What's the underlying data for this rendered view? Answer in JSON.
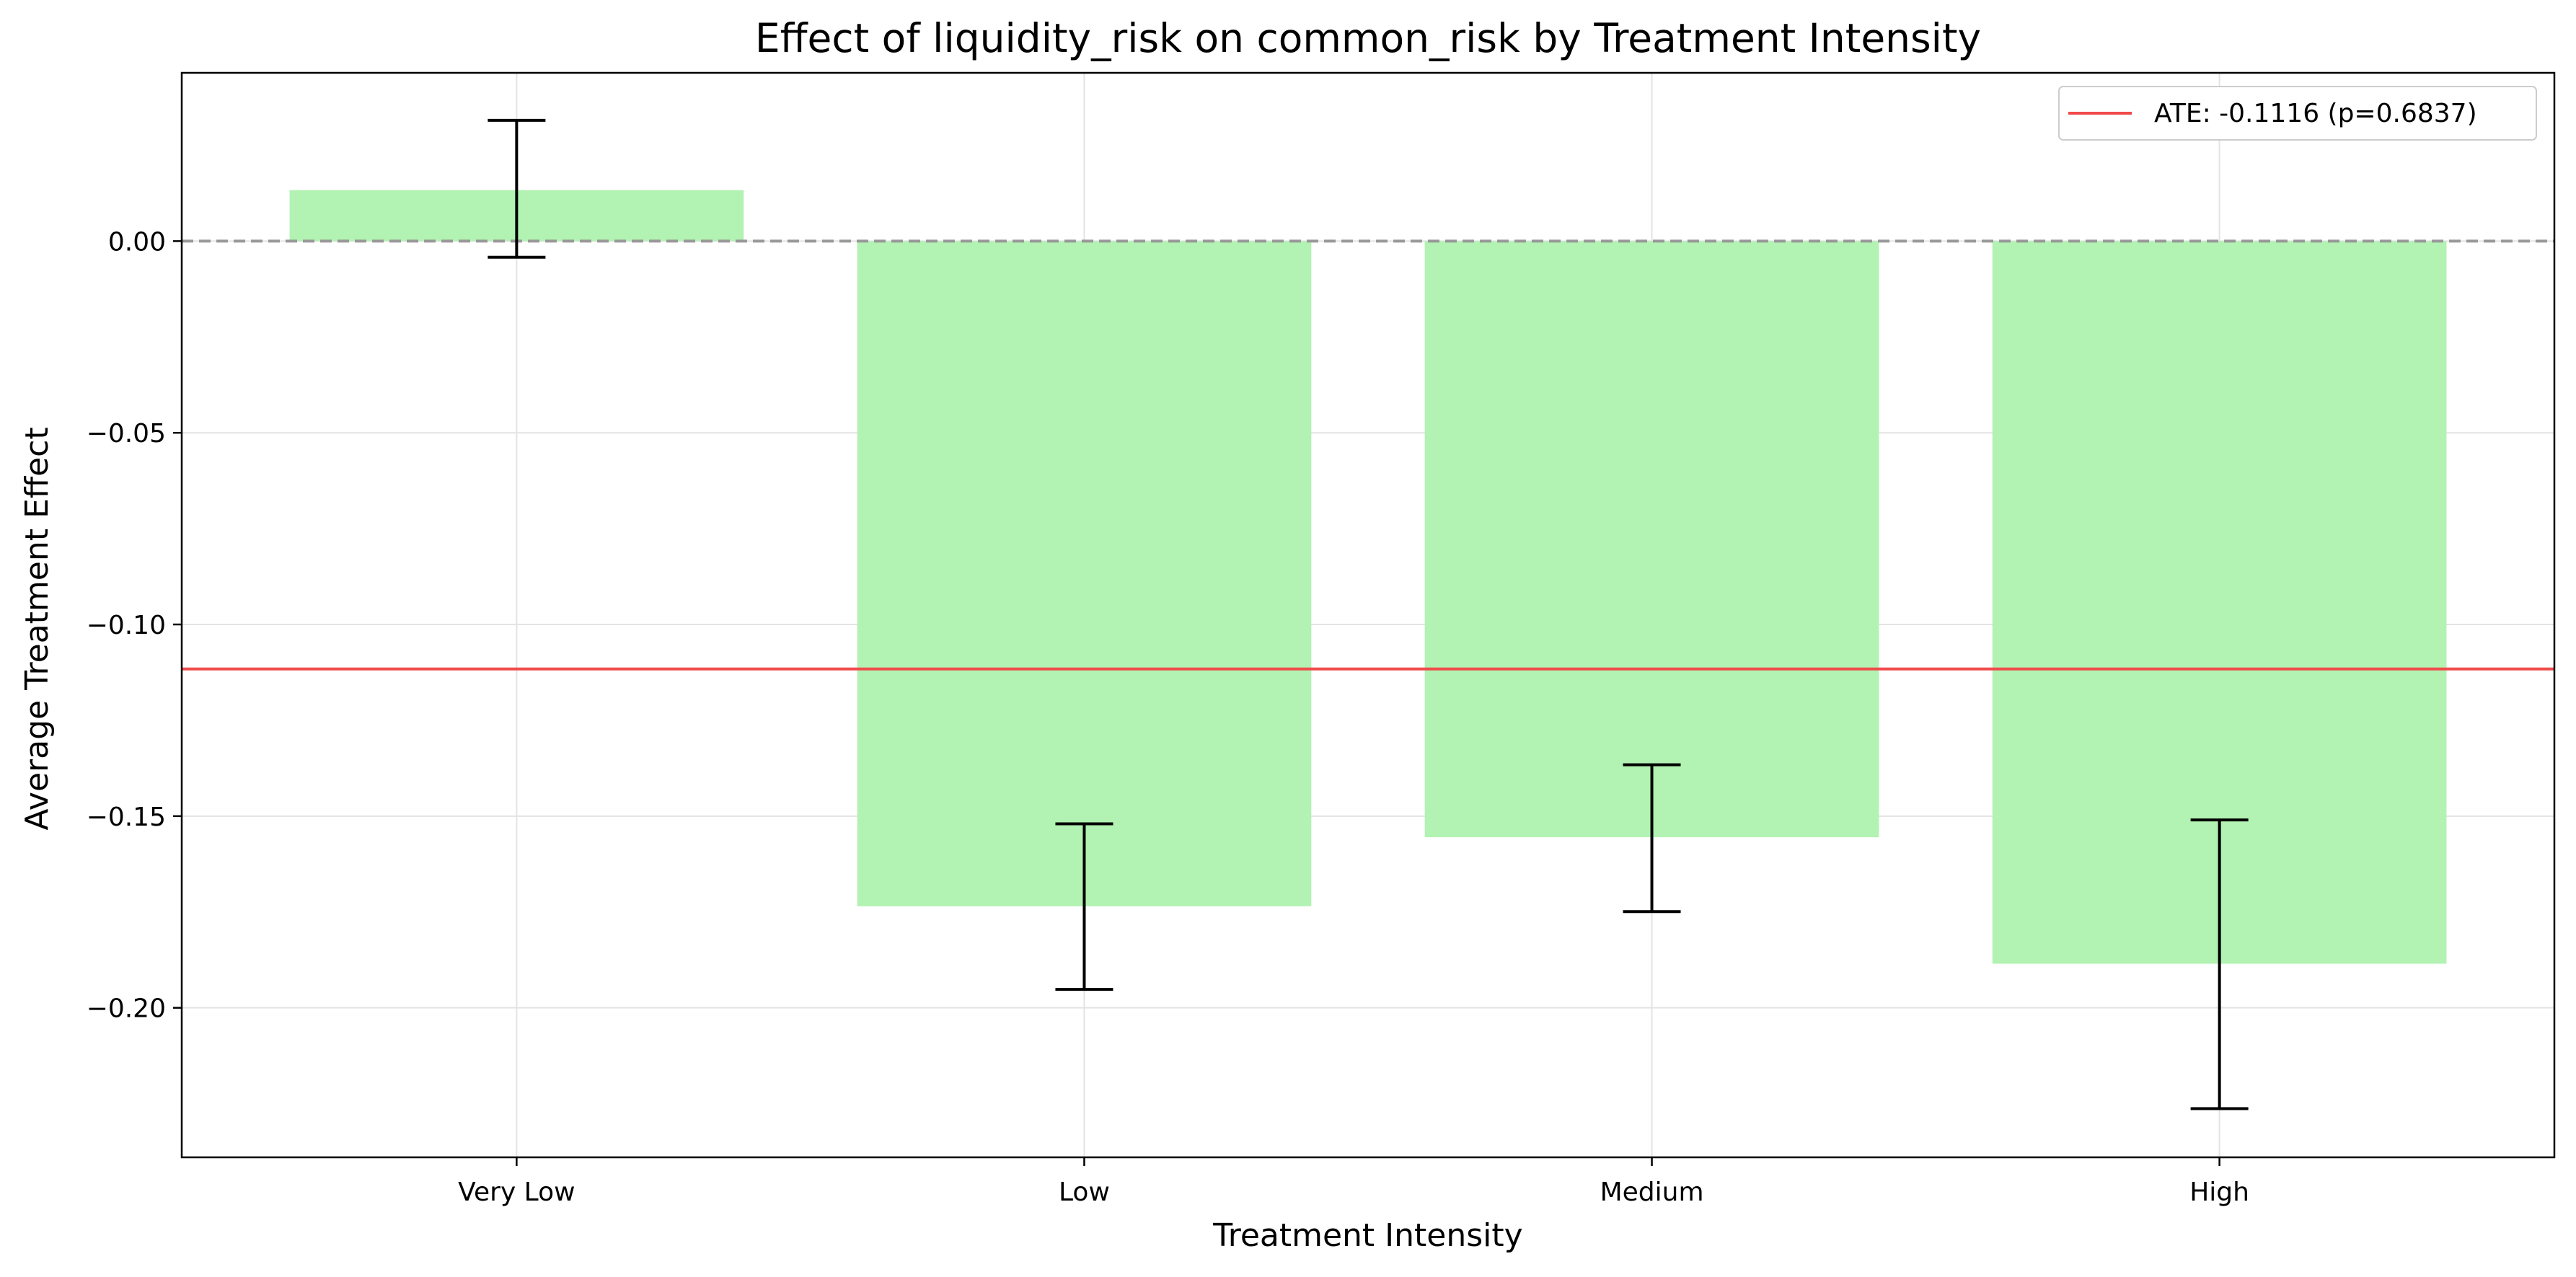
{
  "chart_data": {
    "type": "bar",
    "title": "Effect of liquidity_risk on common_risk by Treatment Intensity",
    "xlabel": "Treatment Intensity",
    "ylabel": "Average Treatment Effect",
    "categories": [
      "Very Low",
      "Low",
      "Medium",
      "High"
    ],
    "values": [
      0.0133,
      -0.1735,
      -0.1555,
      -0.1885
    ],
    "error_low": [
      -0.0042,
      -0.1952,
      -0.1749,
      -0.2263
    ],
    "error_high": [
      0.0315,
      -0.152,
      -0.1366,
      -0.151
    ],
    "ylim": [
      -0.239,
      0.0439
    ],
    "yticks": [
      0.0,
      -0.05,
      -0.1,
      -0.15,
      -0.2
    ],
    "ytick_labels": [
      "0.00",
      "−0.05",
      "−0.10",
      "−0.15",
      "−0.20"
    ],
    "ate_line": {
      "value": -0.1116,
      "label": "ATE: -0.1116 (p=0.6837)",
      "color": "#f04a4a"
    },
    "zero_line": {
      "value": 0,
      "style": "dashed",
      "color": "#999999"
    },
    "bar_color": "#b2f2b2",
    "grid": true,
    "legend_position": "top-right"
  }
}
